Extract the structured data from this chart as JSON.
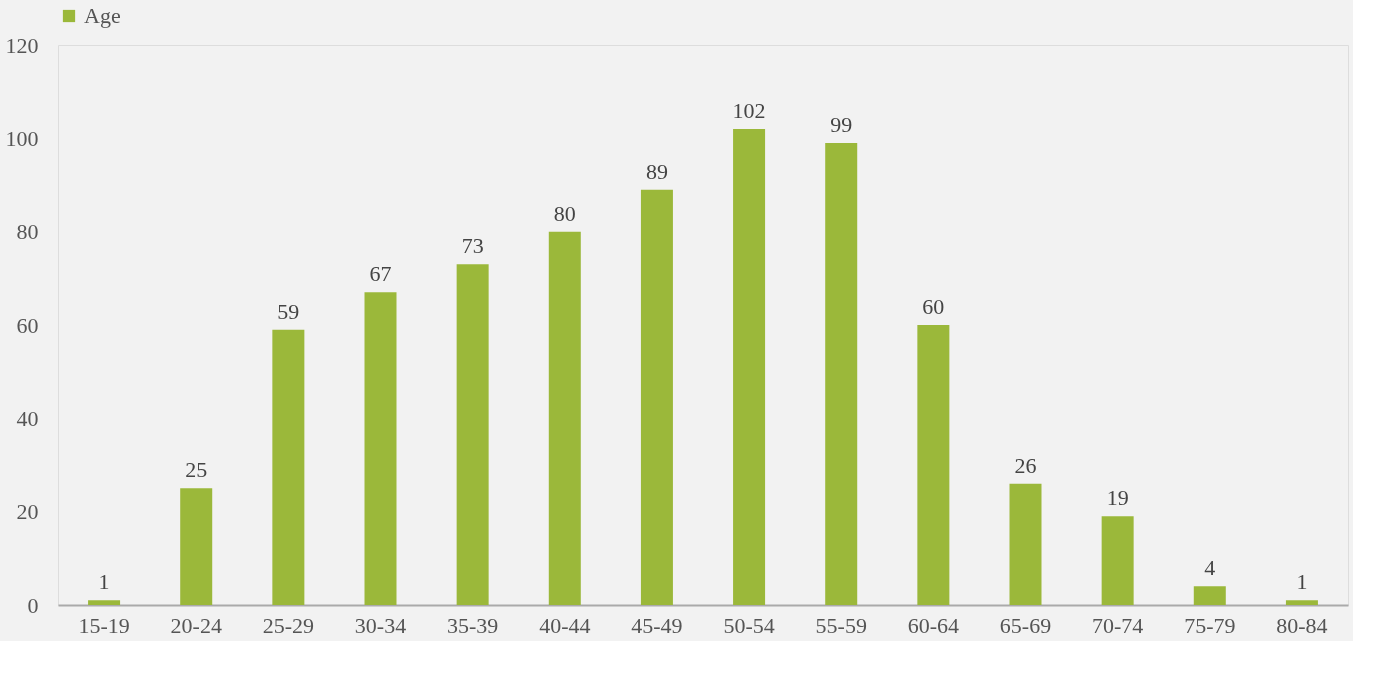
{
  "chart_data": {
    "type": "bar",
    "categories": [
      "15-19",
      "20-24",
      "25-29",
      "30-34",
      "35-39",
      "40-44",
      "45-49",
      "50-54",
      "55-59",
      "60-64",
      "65-69",
      "70-74",
      "75-79",
      "80-84"
    ],
    "series": [
      {
        "name": "Age",
        "color": "#9bb83a",
        "values": [
          1,
          25,
          59,
          67,
          73,
          80,
          89,
          102,
          99,
          60,
          26,
          19,
          4,
          1
        ]
      }
    ],
    "ylim": [
      0,
      120
    ],
    "yticks": [
      0,
      20,
      40,
      60,
      80,
      100,
      120
    ],
    "grid": false,
    "legend": "top",
    "data_labels": true
  }
}
